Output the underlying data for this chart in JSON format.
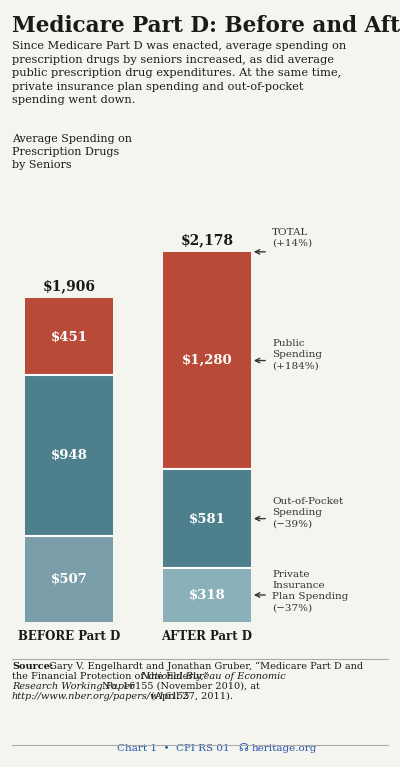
{
  "title": "Medicare Part D: Before and After",
  "subtitle": "Since Medicare Part D was enacted, average spending on\nprescription drugs by seniors increased, as did average\npublic prescription drug expenditures. At the same time,\nprivate insurance plan spending and out-of-pocket\nspending went down.",
  "chart_label": "Average Spending on\nPrescription Drugs\nby Seniors",
  "before": {
    "label": "BEFORE Part D",
    "total_label": "$1,906",
    "segments": [
      {
        "label": "$507",
        "value": 507,
        "color": "#7a9faa"
      },
      {
        "label": "$948",
        "value": 948,
        "color": "#4d7f8c"
      },
      {
        "label": "$451",
        "value": 451,
        "color": "#b94a38"
      }
    ]
  },
  "after": {
    "label": "AFTER Part D",
    "total_label": "$2,178",
    "segments": [
      {
        "label": "$318",
        "value": 318,
        "color": "#8ab0ba"
      },
      {
        "label": "$581",
        "value": 581,
        "color": "#4d7f8c"
      },
      {
        "label": "$1,280",
        "value": 1280,
        "color": "#b94a38"
      }
    ]
  },
  "annot_total": "TOTAL\n(+14%)",
  "annot_public": "Public\nSpending\n(+184%)",
  "annot_oop": "Out-of-Pocket\nSpending\n(−39%)",
  "annot_private": "Private\nInsurance\nPlan Spending\n(−37%)",
  "source_bold": "Source:",
  "source_normal": " Gary V. Engelhardt and Jonathan Gruber, “Medicare Part D and\nthe Financial Protection of the Elderly,” ",
  "source_italic": "National Bureau of Economic\nResearch Working Paper",
  "source_rest": " No. 16155 (November 2010), at\n",
  "source_italic2": "http://www.nber.org/papers/w16155",
  "source_end": " (April 27, 2011).",
  "footer_left": "Chart 1  •  CPI RS 01",
  "footer_right": "heritage.org",
  "bg_color": "#f0f0eb",
  "text_color": "#1a1a1a",
  "bar_label_color": "#ffffff",
  "annot_color": "#333333",
  "footer_color": "#2255aa"
}
